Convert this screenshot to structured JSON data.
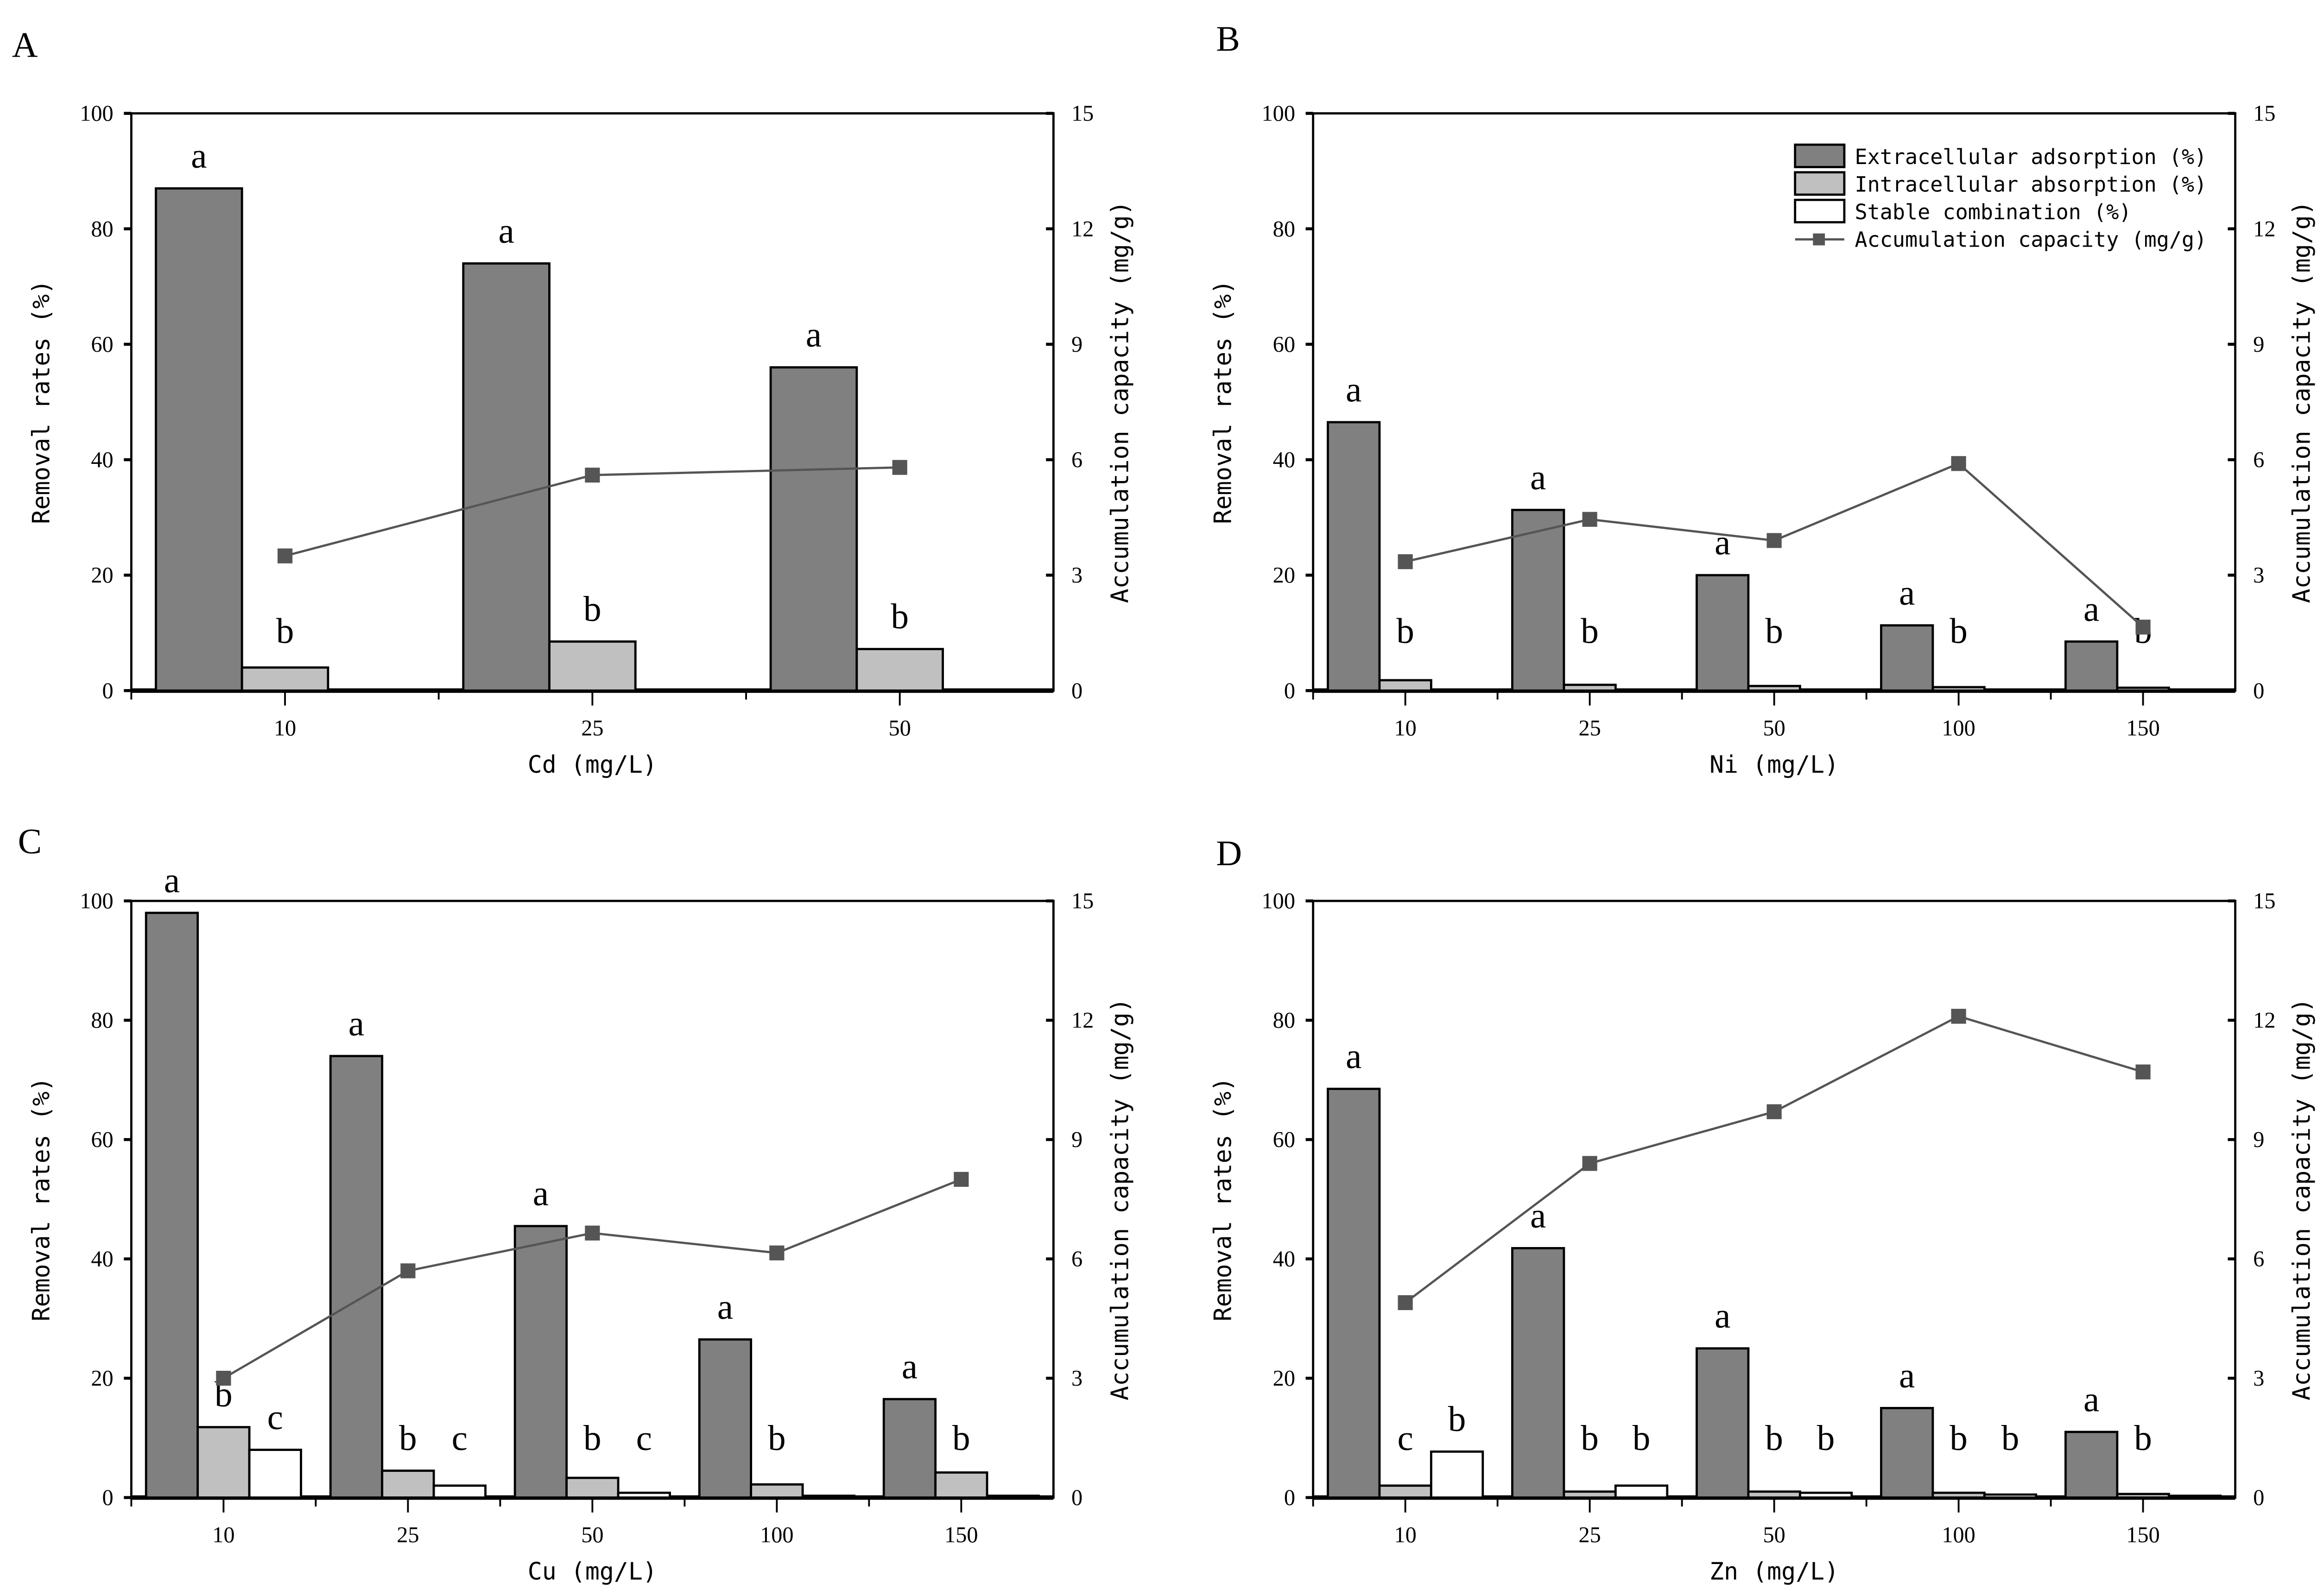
{
  "colors": {
    "extracellular": "#808080",
    "intracellular": "#c0c0c0",
    "stable": "#ffffff",
    "accumulation": "#555555"
  },
  "legend": [
    "Extracellular adsorption (%)",
    "Intracellular absorption (%)",
    "Stable combination (%)",
    "Accumulation capacity (mg/g)"
  ],
  "chart_data": [
    {
      "panel": "A",
      "type": "bar",
      "xlabel": "Cd (mg/L)",
      "ylabel": "Removal rates (%)",
      "y2label": "Accumulation capacity (mg/g)",
      "ylim": [
        0,
        100
      ],
      "y2lim": [
        0,
        15
      ],
      "yticks": [
        "0",
        "20",
        "40",
        "60",
        "80",
        "100"
      ],
      "y2ticks": [
        "0",
        "3",
        "6",
        "9",
        "12",
        "15"
      ],
      "categories": [
        "10",
        "25",
        "50"
      ],
      "series": [
        {
          "name": "Extracellular adsorption (%)",
          "values": [
            87,
            74,
            56
          ],
          "letters": [
            "a",
            "a",
            "a"
          ]
        },
        {
          "name": "Intracellular absorption (%)",
          "values": [
            4,
            8.5,
            7.2
          ],
          "letters": [
            "b",
            "b",
            "b"
          ]
        },
        {
          "name": "Stable combination (%)",
          "values": [
            0,
            0,
            0
          ],
          "letters": [
            "",
            "",
            ""
          ]
        }
      ],
      "accumulation": [
        3.5,
        5.6,
        5.8
      ],
      "legend": false
    },
    {
      "panel": "B",
      "type": "bar",
      "xlabel": "Ni (mg/L)",
      "ylabel": "Removal rates (%)",
      "y2label": "Accumulation capacity (mg/g)",
      "ylim": [
        0,
        100
      ],
      "y2lim": [
        0,
        15
      ],
      "yticks": [
        "0",
        "20",
        "40",
        "60",
        "80",
        "100"
      ],
      "y2ticks": [
        "0",
        "3",
        "6",
        "9",
        "12",
        "15"
      ],
      "categories": [
        "10",
        "25",
        "50",
        "100",
        "150"
      ],
      "series": [
        {
          "name": "Extracellular adsorption (%)",
          "values": [
            46.5,
            31.3,
            20,
            11.3,
            8.5
          ],
          "letters": [
            "a",
            "a",
            "a",
            "a",
            "a"
          ]
        },
        {
          "name": "Intracellular absorption (%)",
          "values": [
            1.8,
            1,
            0.8,
            0.6,
            0.5
          ],
          "letters": [
            "b",
            "b",
            "b",
            "b",
            "b"
          ]
        },
        {
          "name": "Stable combination (%)",
          "values": [
            0,
            0,
            0,
            0,
            0
          ],
          "letters": [
            "",
            "",
            "",
            "",
            ""
          ]
        }
      ],
      "accumulation": [
        3.35,
        4.45,
        3.9,
        5.9,
        1.65
      ],
      "legend": true
    },
    {
      "panel": "C",
      "type": "bar",
      "xlabel": "Cu (mg/L)",
      "ylabel": "Removal rates (%)",
      "y2label": "Accumulation capacity (mg/g)",
      "ylim": [
        0,
        100
      ],
      "y2lim": [
        0,
        15
      ],
      "yticks": [
        "0",
        "20",
        "40",
        "60",
        "80",
        "100"
      ],
      "y2ticks": [
        "0",
        "3",
        "6",
        "9",
        "12",
        "15"
      ],
      "categories": [
        "10",
        "25",
        "50",
        "100",
        "150"
      ],
      "series": [
        {
          "name": "Extracellular adsorption (%)",
          "values": [
            98,
            74,
            45.5,
            26.5,
            16.5
          ],
          "letters": [
            "a",
            "a",
            "a",
            "a",
            "a"
          ]
        },
        {
          "name": "Intracellular absorption (%)",
          "values": [
            11.8,
            4.5,
            3.3,
            2.2,
            4.2
          ],
          "letters": [
            "b",
            "b",
            "b",
            "b",
            "b"
          ]
        },
        {
          "name": "Stable combination (%)",
          "values": [
            8,
            2,
            0.8,
            0.3,
            0.3
          ],
          "letters": [
            "c",
            "c",
            "c",
            "",
            ""
          ]
        }
      ],
      "accumulation": [
        3.0,
        5.7,
        6.65,
        6.15,
        8.0
      ],
      "legend": false
    },
    {
      "panel": "D",
      "type": "bar",
      "xlabel": "Zn (mg/L)",
      "ylabel": "Removal rates (%)",
      "y2label": "Accumulation capacity (mg/g)",
      "ylim": [
        0,
        100
      ],
      "y2lim": [
        0,
        15
      ],
      "yticks": [
        "0",
        "20",
        "40",
        "60",
        "80",
        "100"
      ],
      "y2ticks": [
        "0",
        "3",
        "6",
        "9",
        "12",
        "15"
      ],
      "categories": [
        "10",
        "25",
        "50",
        "100",
        "150"
      ],
      "series": [
        {
          "name": "Extracellular adsorption (%)",
          "values": [
            68.5,
            41.8,
            25,
            15,
            11
          ],
          "letters": [
            "a",
            "a",
            "a",
            "a",
            "a"
          ]
        },
        {
          "name": "Intracellular absorption (%)",
          "values": [
            2,
            1,
            1,
            0.8,
            0.6
          ],
          "letters": [
            "c",
            "b",
            "b",
            "b",
            "b"
          ]
        },
        {
          "name": "Stable combination (%)",
          "values": [
            7.7,
            2,
            0.8,
            0.5,
            0.3
          ],
          "letters": [
            "b",
            "b",
            "b",
            "b",
            ""
          ]
        }
      ],
      "accumulation": [
        4.9,
        8.4,
        9.7,
        12.1,
        10.7
      ],
      "legend": false
    }
  ]
}
